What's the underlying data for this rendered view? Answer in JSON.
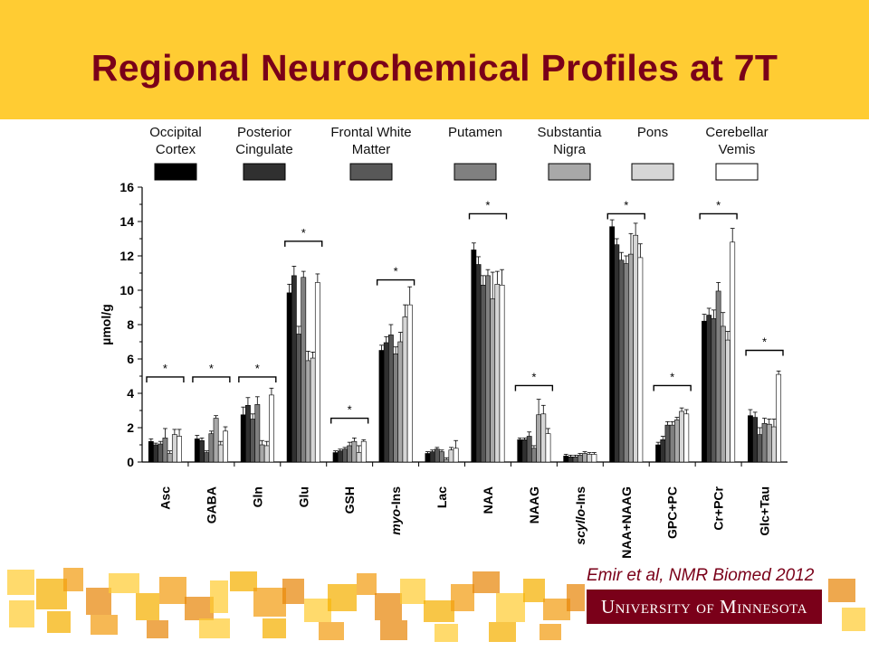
{
  "slide": {
    "title": "Regional Neurochemical Profiles at 7T",
    "citation": "Emir et al, NMR Biomed 2012",
    "logo_text": "University of Minnesota"
  },
  "colors": {
    "banner": "#ffcc33",
    "title": "#7a0019",
    "logo_bg": "#7a0019",
    "deco": [
      "#ffcc33",
      "#f5b000",
      "#f39c12",
      "#e8870a"
    ]
  },
  "chart_data": {
    "type": "bar",
    "ylabel": "µmol/g",
    "ylim": [
      0,
      16
    ],
    "yticks": [
      "0",
      "2",
      "4",
      "6",
      "8",
      "10",
      "12",
      "14",
      "16"
    ],
    "categories": [
      "Asc",
      "GABA",
      "Gln",
      "Glu",
      "GSH",
      "myo-Ins",
      "Lac",
      "NAA",
      "NAAG",
      "scyllo-Ins",
      "NAA+NAAG",
      "GPC+PC",
      "Cr+PCr",
      "Glc+Tau"
    ],
    "category_labels": [
      {
        "parts": [
          {
            "text": "Asc",
            "italic": false
          }
        ]
      },
      {
        "parts": [
          {
            "text": "GABA",
            "italic": false
          }
        ]
      },
      {
        "parts": [
          {
            "text": "Gln",
            "italic": false
          }
        ]
      },
      {
        "parts": [
          {
            "text": "Glu",
            "italic": false
          }
        ]
      },
      {
        "parts": [
          {
            "text": "GSH",
            "italic": false
          }
        ]
      },
      {
        "parts": [
          {
            "text": "myo",
            "italic": true
          },
          {
            "text": "-Ins",
            "italic": false
          }
        ]
      },
      {
        "parts": [
          {
            "text": "Lac",
            "italic": false
          }
        ]
      },
      {
        "parts": [
          {
            "text": "NAA",
            "italic": false
          }
        ]
      },
      {
        "parts": [
          {
            "text": "NAAG",
            "italic": false
          }
        ]
      },
      {
        "parts": [
          {
            "text": "scyllo",
            "italic": true
          },
          {
            "text": "-Ins",
            "italic": false
          }
        ]
      },
      {
        "parts": [
          {
            "text": "NAA+NAAG",
            "italic": false
          }
        ]
      },
      {
        "parts": [
          {
            "text": "GPC+PC",
            "italic": false
          }
        ]
      },
      {
        "parts": [
          {
            "text": "Cr+PCr",
            "italic": false
          }
        ]
      },
      {
        "parts": [
          {
            "text": "Glc+Tau",
            "italic": false
          }
        ]
      }
    ],
    "series": [
      {
        "name": "Occipital Cortex",
        "label_lines": [
          "Occipital",
          "Cortex"
        ],
        "color": "#000000",
        "values": [
          1.2,
          1.35,
          2.75,
          9.85,
          0.55,
          6.5,
          0.5,
          12.35,
          1.3,
          0.35,
          13.7,
          1.0,
          8.2,
          2.7
        ],
        "errors": [
          0.15,
          0.2,
          0.45,
          0.5,
          0.1,
          0.3,
          0.1,
          0.4,
          0.1,
          0.1,
          0.4,
          0.15,
          0.4,
          0.35
        ]
      },
      {
        "name": "Posterior Cingulate",
        "label_lines": [
          "Posterior",
          "Cingulate"
        ],
        "color": "#303030",
        "values": [
          1.0,
          1.25,
          3.3,
          10.85,
          0.65,
          6.95,
          0.6,
          11.5,
          1.3,
          0.3,
          12.65,
          1.3,
          8.55,
          2.6
        ],
        "errors": [
          0.1,
          0.15,
          0.45,
          0.55,
          0.1,
          0.35,
          0.1,
          0.45,
          0.1,
          0.1,
          0.35,
          0.2,
          0.4,
          0.3
        ]
      },
      {
        "name": "Frontal White Matter",
        "label_lines": [
          "Frontal White",
          "Matter"
        ],
        "color": "#585858",
        "values": [
          1.05,
          0.55,
          2.5,
          7.45,
          0.75,
          7.4,
          0.75,
          10.3,
          1.5,
          0.3,
          11.75,
          2.15,
          8.35,
          1.6
        ],
        "errors": [
          0.15,
          0.1,
          0.3,
          0.45,
          0.1,
          0.6,
          0.1,
          0.55,
          0.25,
          0.1,
          0.45,
          0.2,
          0.5,
          0.4
        ]
      },
      {
        "name": "Putamen",
        "label_lines": [
          "Putamen"
        ],
        "color": "#808080",
        "values": [
          1.4,
          1.65,
          3.35,
          10.75,
          0.95,
          6.3,
          0.6,
          10.85,
          0.8,
          0.4,
          11.55,
          2.15,
          9.95,
          2.25
        ],
        "errors": [
          0.55,
          0.15,
          0.45,
          0.35,
          0.2,
          0.4,
          0.1,
          0.35,
          0.15,
          0.1,
          0.45,
          0.2,
          0.5,
          0.3
        ]
      },
      {
        "name": "Substantia Nigra",
        "label_lines": [
          "Substantia",
          "Nigra"
        ],
        "color": "#a8a8a8",
        "values": [
          0.5,
          2.55,
          1.0,
          5.9,
          1.2,
          7.0,
          0.15,
          9.5,
          2.75,
          0.5,
          12.1,
          2.45,
          7.9,
          2.2
        ],
        "errors": [
          0.15,
          0.15,
          0.25,
          0.55,
          0.2,
          0.55,
          0.1,
          1.55,
          0.9,
          0.1,
          1.2,
          0.15,
          0.8,
          0.3
        ]
      },
      {
        "name": "Pons",
        "label_lines": [
          "Pons"
        ],
        "color": "#d6d6d6",
        "values": [
          1.6,
          1.0,
          0.95,
          6.05,
          0.55,
          8.45,
          0.7,
          10.35,
          2.8,
          0.45,
          13.2,
          2.95,
          7.1,
          2.05
        ],
        "errors": [
          0.3,
          0.2,
          0.25,
          0.35,
          0.4,
          0.7,
          0.15,
          0.75,
          0.5,
          0.1,
          0.7,
          0.2,
          0.5,
          0.45
        ]
      },
      {
        "name": "Cerebellar Vemis",
        "label_lines": [
          "Cerebellar",
          "Vemis"
        ],
        "color": "#ffffff",
        "values": [
          1.5,
          1.8,
          3.9,
          10.45,
          1.2,
          9.15,
          0.8,
          10.3,
          1.65,
          0.45,
          11.9,
          2.8,
          12.8,
          5.1
        ],
        "errors": [
          0.4,
          0.25,
          0.4,
          0.5,
          0.1,
          1.05,
          0.45,
          0.9,
          0.3,
          0.1,
          0.8,
          0.25,
          0.8,
          0.2
        ]
      }
    ],
    "significance": [
      {
        "category": "Asc",
        "label": "*",
        "y": 4.95
      },
      {
        "category": "GABA",
        "label": "*",
        "y": 4.95
      },
      {
        "category": "Gln",
        "label": "*",
        "y": 4.95
      },
      {
        "category": "Glu",
        "label": "*",
        "y": 12.85
      },
      {
        "category": "GSH",
        "label": "*",
        "y": 2.55
      },
      {
        "category": "myo-Ins",
        "label": "*",
        "y": 10.6
      },
      {
        "category": "NAA",
        "label": "*",
        "y": 14.45
      },
      {
        "category": "NAAG",
        "label": "*",
        "y": 4.45
      },
      {
        "category": "NAA+NAAG",
        "label": "*",
        "y": 14.45
      },
      {
        "category": "GPC+PC",
        "label": "*",
        "y": 4.45
      },
      {
        "category": "Cr+PCr",
        "label": "*",
        "y": 14.45
      },
      {
        "category": "Glc+Tau",
        "label": "*",
        "y": 6.5
      }
    ]
  }
}
